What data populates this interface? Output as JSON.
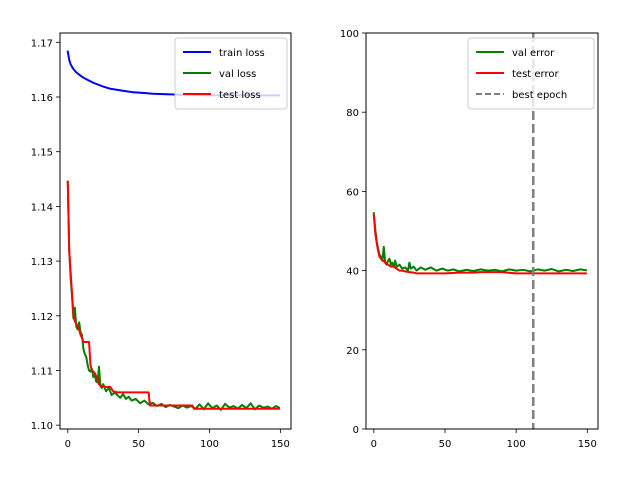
{
  "chart_data": [
    {
      "type": "line",
      "xlim": [
        -5.5,
        157.5
      ],
      "ylim": [
        1.0993,
        1.1717
      ],
      "xticks": [
        0,
        50,
        100,
        150
      ],
      "xtick_labels": [
        "0",
        "50",
        "100",
        "150"
      ],
      "yticks": [
        1.1,
        1.11,
        1.12,
        1.13,
        1.14,
        1.15,
        1.16,
        1.17
      ],
      "ytick_labels": [
        "1.10",
        "1.11",
        "1.12",
        "1.13",
        "1.14",
        "1.15",
        "1.16",
        "1.17"
      ],
      "grid": false,
      "legend_position": "top-right",
      "series": [
        {
          "name": "train loss",
          "color": "#0000ff",
          "x": [
            0,
            1,
            2,
            3,
            4,
            5,
            6,
            8,
            10,
            12,
            15,
            18,
            20,
            25,
            30,
            35,
            40,
            45,
            50,
            55,
            60,
            70,
            80,
            90,
            100,
            110,
            120,
            130,
            140,
            149
          ],
          "y": [
            1.1683,
            1.1668,
            1.166,
            1.1655,
            1.1651,
            1.1648,
            1.1645,
            1.1641,
            1.1637,
            1.1634,
            1.163,
            1.1626,
            1.1624,
            1.1619,
            1.1615,
            1.1613,
            1.1611,
            1.1609,
            1.1608,
            1.1607,
            1.1606,
            1.1605,
            1.1604,
            1.1604,
            1.1603,
            1.1603,
            1.1603,
            1.1603,
            1.1603,
            1.1603
          ]
        },
        {
          "name": "val loss",
          "color": "#008000",
          "x": [
            0,
            1,
            2,
            3,
            4,
            5,
            6,
            7,
            8,
            9,
            10,
            11,
            12,
            13,
            14,
            15,
            16,
            17,
            18,
            19,
            20,
            21,
            22,
            23,
            24,
            25,
            27,
            29,
            31,
            33,
            35,
            37,
            39,
            41,
            43,
            45,
            48,
            51,
            54,
            57,
            60,
            63,
            66,
            69,
            72,
            75,
            78,
            81,
            84,
            87,
            90,
            93,
            96,
            99,
            102,
            105,
            108,
            111,
            114,
            117,
            120,
            123,
            126,
            129,
            132,
            135,
            138,
            141,
            144,
            147,
            149
          ],
          "y": [
            1.1445,
            1.132,
            1.127,
            1.1235,
            1.1195,
            1.1215,
            1.118,
            1.1175,
            1.1188,
            1.117,
            1.1165,
            1.114,
            1.113,
            1.1125,
            1.111,
            1.11,
            1.1098,
            1.1103,
            1.1088,
            1.1093,
            1.108,
            1.1078,
            1.1107,
            1.1072,
            1.1068,
            1.1075,
            1.1062,
            1.1068,
            1.1055,
            1.106,
            1.1055,
            1.105,
            1.1057,
            1.1048,
            1.1052,
            1.1045,
            1.1048,
            1.104,
            1.1045,
            1.1038,
            1.1041,
            1.1035,
            1.1039,
            1.1033,
            1.1037,
            1.1034,
            1.1031,
            1.1036,
            1.1032,
            1.1035,
            1.103,
            1.1038,
            1.1029,
            1.104,
            1.1031,
            1.1036,
            1.1028,
            1.1039,
            1.1032,
            1.1035,
            1.103,
            1.1037,
            1.1031,
            1.104,
            1.1029,
            1.1036,
            1.1032,
            1.1034,
            1.103,
            1.1035,
            1.1032
          ]
        },
        {
          "name": "test loss",
          "color": "#ff0000",
          "x": [
            0,
            1,
            2,
            3,
            4,
            5,
            6,
            7,
            8,
            9,
            10,
            11,
            12,
            13,
            15,
            16,
            17,
            18,
            19,
            20,
            21,
            22,
            23,
            24,
            26,
            28,
            30,
            32,
            35,
            38,
            40,
            57,
            58,
            88,
            89,
            149
          ],
          "y": [
            1.1445,
            1.132,
            1.128,
            1.124,
            1.12,
            1.119,
            1.1185,
            1.118,
            1.1175,
            1.1165,
            1.116,
            1.1152,
            1.1152,
            1.1152,
            1.1152,
            1.111,
            1.11,
            1.1098,
            1.1095,
            1.109,
            1.1085,
            1.1075,
            1.1072,
            1.1072,
            1.107,
            1.107,
            1.107,
            1.1062,
            1.106,
            1.106,
            1.106,
            1.106,
            1.1036,
            1.1036,
            1.103,
            1.103
          ]
        }
      ]
    },
    {
      "type": "line",
      "xlim": [
        -5.5,
        157.5
      ],
      "ylim": [
        0,
        100
      ],
      "xticks": [
        0,
        50,
        100,
        150
      ],
      "xtick_labels": [
        "0",
        "50",
        "100",
        "150"
      ],
      "yticks": [
        0,
        20,
        40,
        60,
        80,
        100
      ],
      "ytick_labels": [
        "0",
        "20",
        "40",
        "60",
        "80",
        "100"
      ],
      "grid": false,
      "legend_position": "top-right",
      "series": [
        {
          "name": "val error",
          "color": "#008000",
          "x": [
            0,
            1,
            2,
            3,
            4,
            5,
            6,
            7,
            8,
            9,
            10,
            11,
            12,
            13,
            14,
            15,
            16,
            18,
            20,
            22,
            24,
            25,
            26,
            28,
            30,
            33,
            36,
            40,
            44,
            48,
            52,
            56,
            60,
            65,
            70,
            75,
            80,
            85,
            90,
            95,
            100,
            105,
            110,
            115,
            120,
            125,
            130,
            135,
            140,
            145,
            149
          ],
          "y": [
            54.5,
            50.5,
            47.5,
            45.5,
            44.0,
            43.5,
            42.5,
            46.0,
            42.0,
            41.5,
            42.5,
            43.0,
            41.5,
            42.0,
            41.0,
            42.5,
            41.0,
            41.5,
            40.5,
            40.8,
            40.0,
            42.0,
            40.5,
            41.0,
            40.0,
            40.8,
            40.2,
            40.8,
            40.0,
            40.5,
            40.0,
            40.3,
            39.8,
            40.2,
            39.9,
            40.3,
            40.0,
            40.2,
            39.8,
            40.3,
            40.0,
            40.2,
            39.8,
            40.3,
            40.0,
            40.4,
            39.8,
            40.2,
            39.9,
            40.3,
            40.1
          ]
        },
        {
          "name": "test error",
          "color": "#ff0000",
          "x": [
            0,
            1,
            2,
            3,
            4,
            5,
            6,
            7,
            8,
            10,
            12,
            14,
            16,
            18,
            20,
            22,
            25,
            28,
            30,
            35,
            40,
            50,
            60,
            70,
            75,
            90,
            100,
            149
          ],
          "y": [
            54.0,
            49.5,
            47.0,
            45.0,
            43.5,
            43.0,
            42.5,
            42.5,
            42.0,
            41.5,
            41.0,
            41.0,
            40.5,
            40.0,
            40.0,
            39.8,
            39.6,
            39.5,
            39.3,
            39.3,
            39.3,
            39.3,
            39.5,
            39.5,
            39.6,
            39.6,
            39.3,
            39.3
          ]
        },
        {
          "name": "best epoch",
          "color": "#808080",
          "style": "dashed",
          "vertical_x": 112
        }
      ]
    }
  ]
}
